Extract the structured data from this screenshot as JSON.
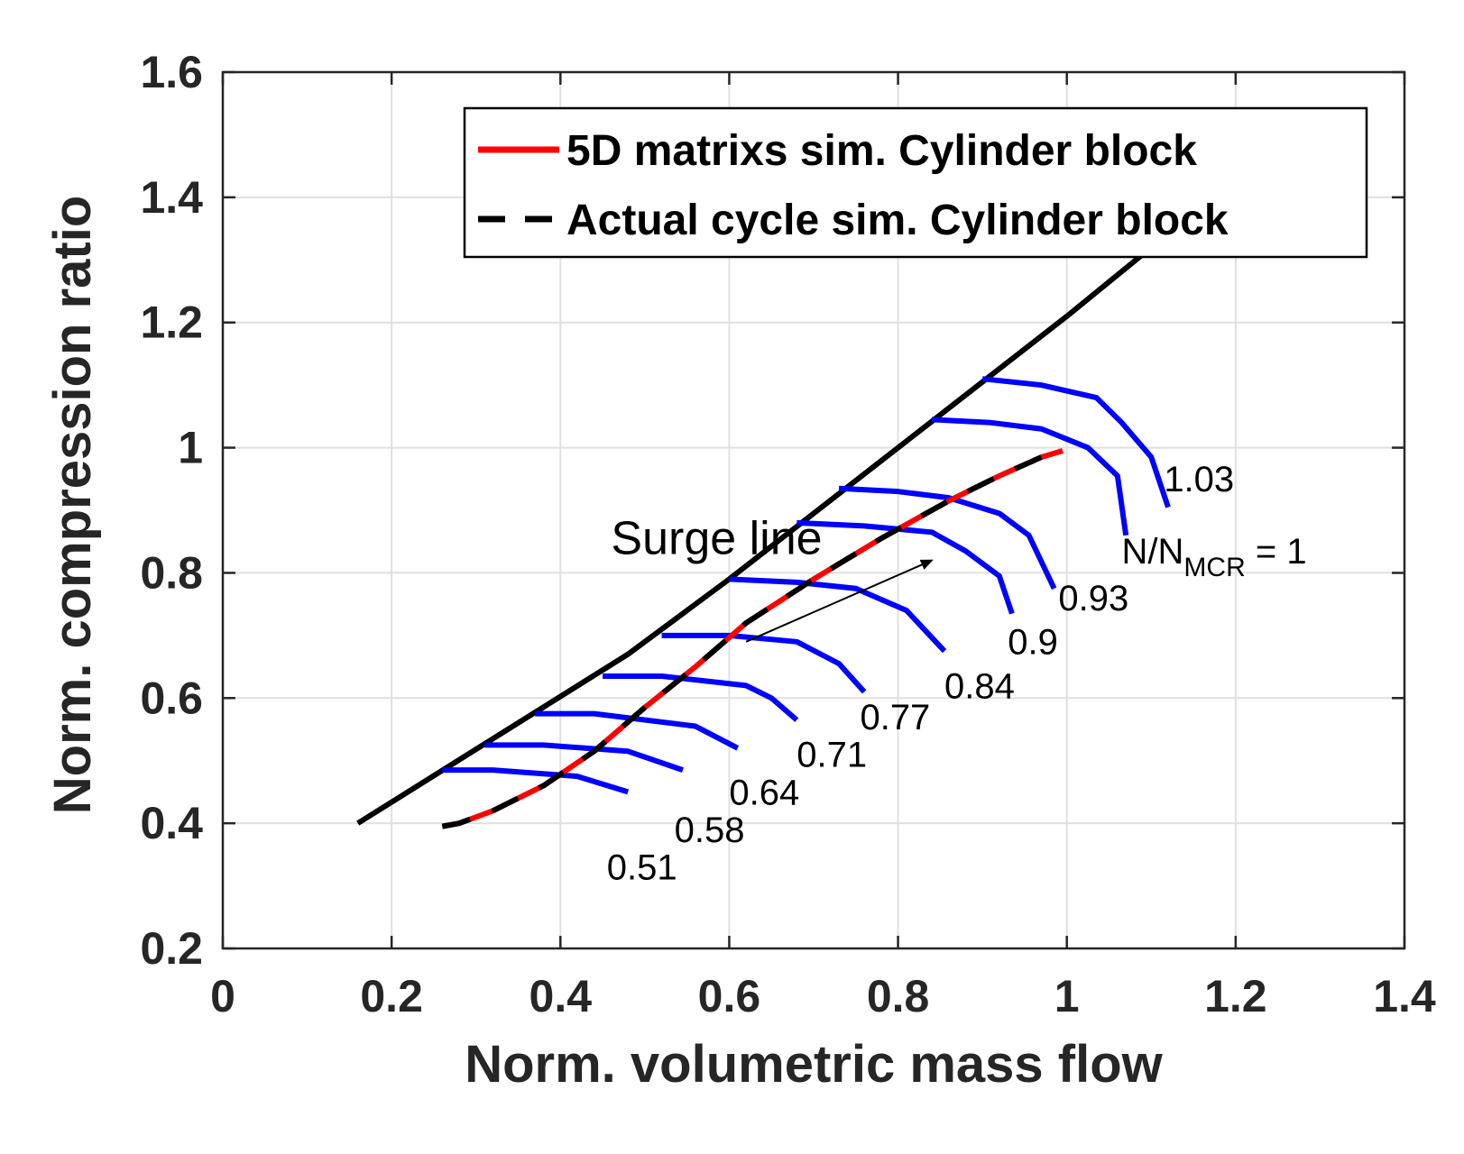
{
  "chart_data": {
    "type": "line",
    "xlabel": "Norm. volumetric mass flow",
    "ylabel": "Norm. compression ratio",
    "xlim": [
      0,
      1.4
    ],
    "ylim": [
      0.2,
      1.6
    ],
    "xticks": [
      0,
      0.2,
      0.4,
      0.6,
      0.8,
      1,
      1.2,
      1.4
    ],
    "xtick_labels": [
      "0",
      "0.2",
      "0.4",
      "0.6",
      "0.8",
      "1",
      "1.2",
      "1.4"
    ],
    "yticks": [
      0.2,
      0.4,
      0.6,
      0.8,
      1,
      1.2,
      1.4,
      1.6
    ],
    "ytick_labels": [
      "0.2",
      "0.4",
      "0.6",
      "0.8",
      "1",
      "1.2",
      "1.4",
      "1.6"
    ],
    "grid": true,
    "legend": {
      "position": "top-right",
      "entries": [
        {
          "label": "5D matrixs sim. Cylinder block",
          "color": "#ff0000",
          "style": "solid"
        },
        {
          "label": "Actual cycle sim. Cylinder block",
          "color": "#000000",
          "style": "dashed"
        }
      ]
    },
    "surge_line": {
      "label": "Surge line",
      "color": "#000000",
      "x": [
        0.16,
        0.48,
        0.52,
        0.6,
        0.7,
        0.8,
        0.9,
        1.0,
        1.1
      ],
      "y": [
        0.4,
        0.67,
        0.71,
        0.79,
        0.895,
        1.0,
        1.105,
        1.21,
        1.32
      ]
    },
    "operating_line": {
      "x": [
        0.26,
        0.28,
        0.32,
        0.38,
        0.44,
        0.5,
        0.56,
        0.62,
        0.7,
        0.78,
        0.86,
        0.92,
        0.97,
        0.995
      ],
      "y": [
        0.395,
        0.4,
        0.42,
        0.46,
        0.515,
        0.585,
        0.65,
        0.72,
        0.79,
        0.855,
        0.915,
        0.955,
        0.985,
        0.995
      ]
    },
    "series": [
      {
        "name": "0.51",
        "color": "#0000ff",
        "x": [
          0.26,
          0.32,
          0.42,
          0.48
        ],
        "y": [
          0.485,
          0.485,
          0.475,
          0.45
        ]
      },
      {
        "name": "0.58",
        "color": "#0000ff",
        "x": [
          0.31,
          0.38,
          0.48,
          0.545
        ],
        "y": [
          0.525,
          0.525,
          0.515,
          0.485
        ]
      },
      {
        "name": "0.64",
        "color": "#0000ff",
        "x": [
          0.37,
          0.44,
          0.56,
          0.61
        ],
        "y": [
          0.575,
          0.575,
          0.555,
          0.52
        ]
      },
      {
        "name": "0.71",
        "color": "#0000ff",
        "x": [
          0.45,
          0.52,
          0.62,
          0.65,
          0.68
        ],
        "y": [
          0.635,
          0.635,
          0.62,
          0.6,
          0.565
        ]
      },
      {
        "name": "0.77",
        "color": "#0000ff",
        "x": [
          0.52,
          0.6,
          0.68,
          0.73,
          0.76
        ],
        "y": [
          0.7,
          0.7,
          0.69,
          0.655,
          0.61
        ]
      },
      {
        "name": "0.84",
        "color": "#0000ff",
        "x": [
          0.6,
          0.68,
          0.75,
          0.81,
          0.855
        ],
        "y": [
          0.79,
          0.785,
          0.775,
          0.74,
          0.675
        ]
      },
      {
        "name": "0.9",
        "color": "#0000ff",
        "x": [
          0.68,
          0.76,
          0.84,
          0.88,
          0.92,
          0.935
        ],
        "y": [
          0.88,
          0.875,
          0.865,
          0.835,
          0.795,
          0.735
        ]
      },
      {
        "name": "0.93",
        "color": "#0000ff",
        "x": [
          0.73,
          0.8,
          0.86,
          0.92,
          0.955,
          0.985
        ],
        "y": [
          0.935,
          0.93,
          0.92,
          0.895,
          0.86,
          0.775
        ]
      },
      {
        "name": "N/N_MCR = 1",
        "color": "#0000ff",
        "x": [
          0.84,
          0.91,
          0.97,
          1.025,
          1.06,
          1.07
        ],
        "y": [
          1.045,
          1.04,
          1.03,
          1.0,
          0.955,
          0.86
        ]
      },
      {
        "name": "1.03",
        "color": "#0000ff",
        "x": [
          0.9,
          0.97,
          1.035,
          1.065,
          1.1,
          1.12
        ],
        "y": [
          1.11,
          1.1,
          1.08,
          1.04,
          0.985,
          0.905
        ]
      }
    ],
    "annotations": [
      {
        "text": "Surge line",
        "x": 0.46,
        "y": 0.83
      },
      {
        "text": "0.51",
        "x": 0.455,
        "y": 0.31
      },
      {
        "text": "0.58",
        "x": 0.535,
        "y": 0.37
      },
      {
        "text": "0.64",
        "x": 0.6,
        "y": 0.43
      },
      {
        "text": "0.71",
        "x": 0.68,
        "y": 0.49
      },
      {
        "text": "0.77",
        "x": 0.755,
        "y": 0.55
      },
      {
        "text": "0.84",
        "x": 0.855,
        "y": 0.6
      },
      {
        "text": "0.9",
        "x": 0.93,
        "y": 0.67
      },
      {
        "text": "0.93",
        "x": 0.99,
        "y": 0.74
      },
      {
        "text": "1.03",
        "x": 1.115,
        "y": 0.93
      }
    ],
    "speed_label": {
      "main": "N/N",
      "sub": "MCR",
      "tail": " = 1",
      "x": 1.065,
      "y": 0.815
    },
    "arrow": {
      "x1": 0.62,
      "y1": 0.69,
      "x2": 0.84,
      "y2": 0.82
    }
  }
}
